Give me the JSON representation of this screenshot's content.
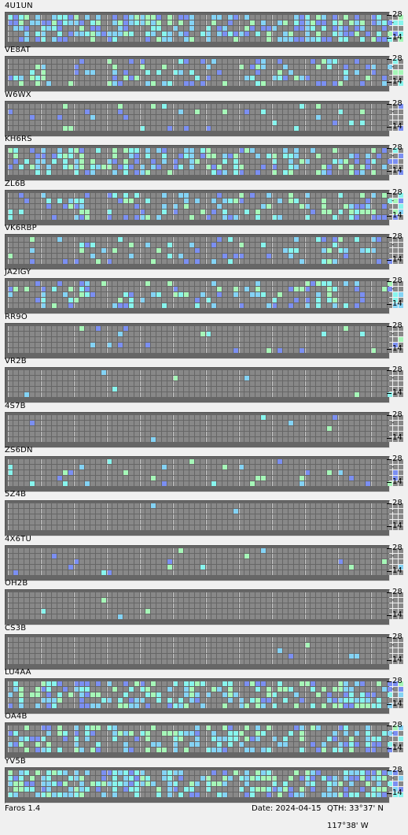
{
  "app": {
    "name": "Faros 1.4"
  },
  "status": {
    "date": "Date: 2024-04-15",
    "qth": "QTH: 33°37' N  117°38' W"
  },
  "axis": {
    "high": "28",
    "low": "14",
    "mid": "-"
  },
  "colors": {
    "off": "#888888",
    "hour_line": "#c8c8c8",
    "weak": "#7b8ff2",
    "medium": "#84d3f5",
    "strong": "#88f5ee",
    "max": "#a6f7b8"
  },
  "beacons": [
    {
      "call": "4U1UN",
      "activity": 0.55
    },
    {
      "call": "VE8AT",
      "activity": 0.25
    },
    {
      "call": "W6WX",
      "activity": 0.1
    },
    {
      "call": "KH6RS",
      "activity": 0.42
    },
    {
      "call": "ZL6B",
      "activity": 0.35
    },
    {
      "call": "VK6RBP",
      "activity": 0.2
    },
    {
      "call": "JA2IGY",
      "activity": 0.25
    },
    {
      "call": "RR9O",
      "activity": 0.05
    },
    {
      "call": "VR2B",
      "activity": 0.02
    },
    {
      "call": "4S7B",
      "activity": 0.02
    },
    {
      "call": "ZS6DN",
      "activity": 0.07
    },
    {
      "call": "5Z4B",
      "activity": 0.01
    },
    {
      "call": "4X6TU",
      "activity": 0.05
    },
    {
      "call": "OH2B",
      "activity": 0.02
    },
    {
      "call": "CS3B",
      "activity": 0.01
    },
    {
      "call": "LU4AA",
      "activity": 0.5
    },
    {
      "call": "OA4B",
      "activity": 0.42
    },
    {
      "call": "YV5B",
      "activity": 0.6
    }
  ]
}
